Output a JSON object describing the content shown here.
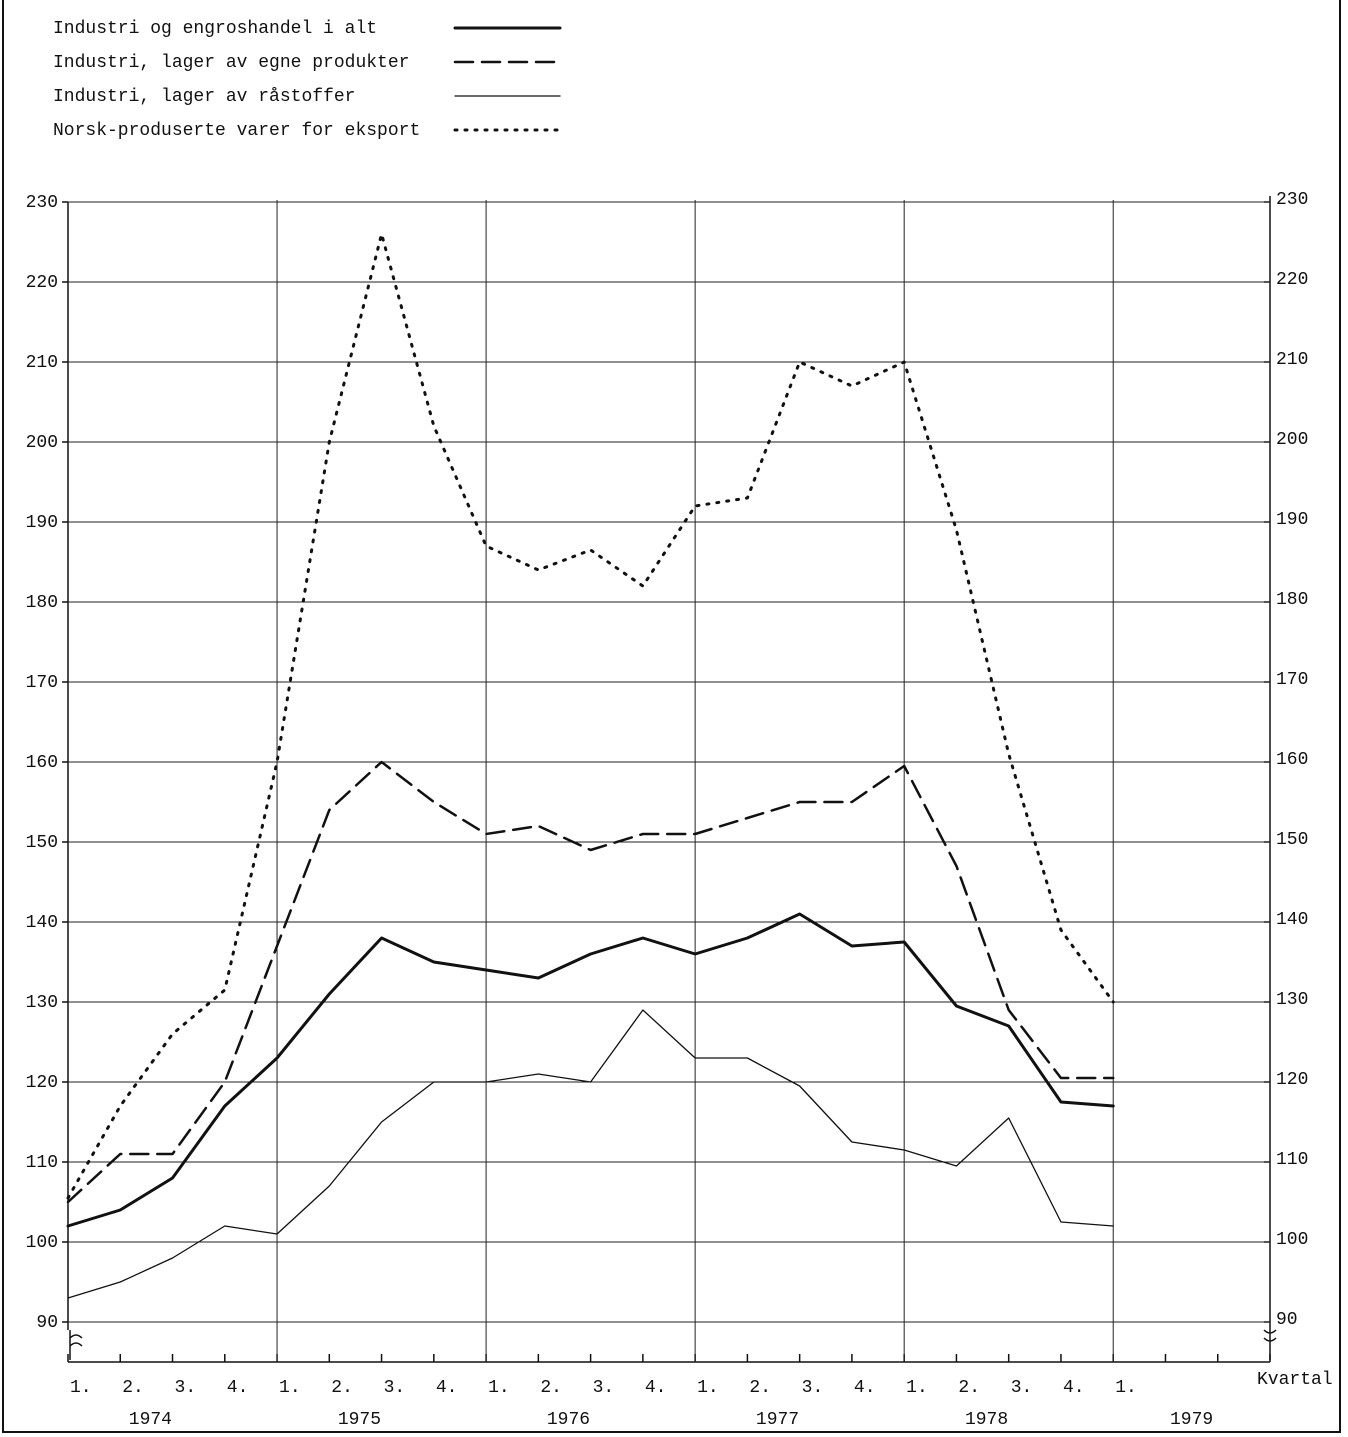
{
  "chart_data": {
    "type": "line",
    "categories": [
      "1.",
      "2.",
      "3.",
      "4.",
      "1.",
      "2.",
      "3.",
      "4.",
      "1.",
      "2.",
      "3.",
      "4.",
      "1.",
      "2.",
      "3.",
      "4.",
      "1.",
      "2.",
      "3.",
      "4.",
      "1."
    ],
    "years": [
      "1974",
      "1975",
      "1976",
      "1977",
      "1978",
      "1979"
    ],
    "x_label": "Kvartal",
    "ylim": [
      85,
      230
    ],
    "yticks": [
      90,
      100,
      110,
      120,
      130,
      140,
      150,
      160,
      170,
      180,
      190,
      200,
      210,
      220,
      230
    ],
    "grid": true,
    "series": [
      {
        "name": "Industri og engroshandel i alt",
        "color": "#111111",
        "style": "solid",
        "width": 3,
        "values": [
          102,
          104,
          108,
          117,
          123,
          131,
          138,
          135,
          134,
          133,
          136,
          138,
          136,
          138,
          141,
          137,
          137.5,
          129.5,
          127,
          117.5,
          117
        ]
      },
      {
        "name": "Industri, lager av egne produkter",
        "color": "#111111",
        "style": "dashed",
        "width": 2.5,
        "values": [
          105,
          111,
          111,
          120,
          137,
          154,
          160,
          155,
          151,
          152,
          149,
          151,
          151,
          153,
          155,
          155,
          159.5,
          147,
          129,
          120.5,
          120.5
        ]
      },
      {
        "name": "Industri, lager av råstoffer",
        "color": "#111111",
        "style": "solid",
        "width": 1.3,
        "values": [
          93,
          95,
          98,
          102,
          101,
          107,
          115,
          120,
          120,
          121,
          120,
          129,
          123,
          123,
          119.5,
          112.5,
          111.5,
          109.5,
          115.5,
          102.5,
          102
        ]
      },
      {
        "name": "Norsk-produserte varer for eksport",
        "color": "#111111",
        "style": "dotted",
        "width": 3,
        "values": [
          105.5,
          117,
          126,
          131.5,
          160,
          200,
          226,
          202,
          187,
          184,
          186.5,
          182,
          192,
          193,
          210,
          207,
          210,
          189,
          161,
          139,
          130
        ]
      }
    ]
  }
}
